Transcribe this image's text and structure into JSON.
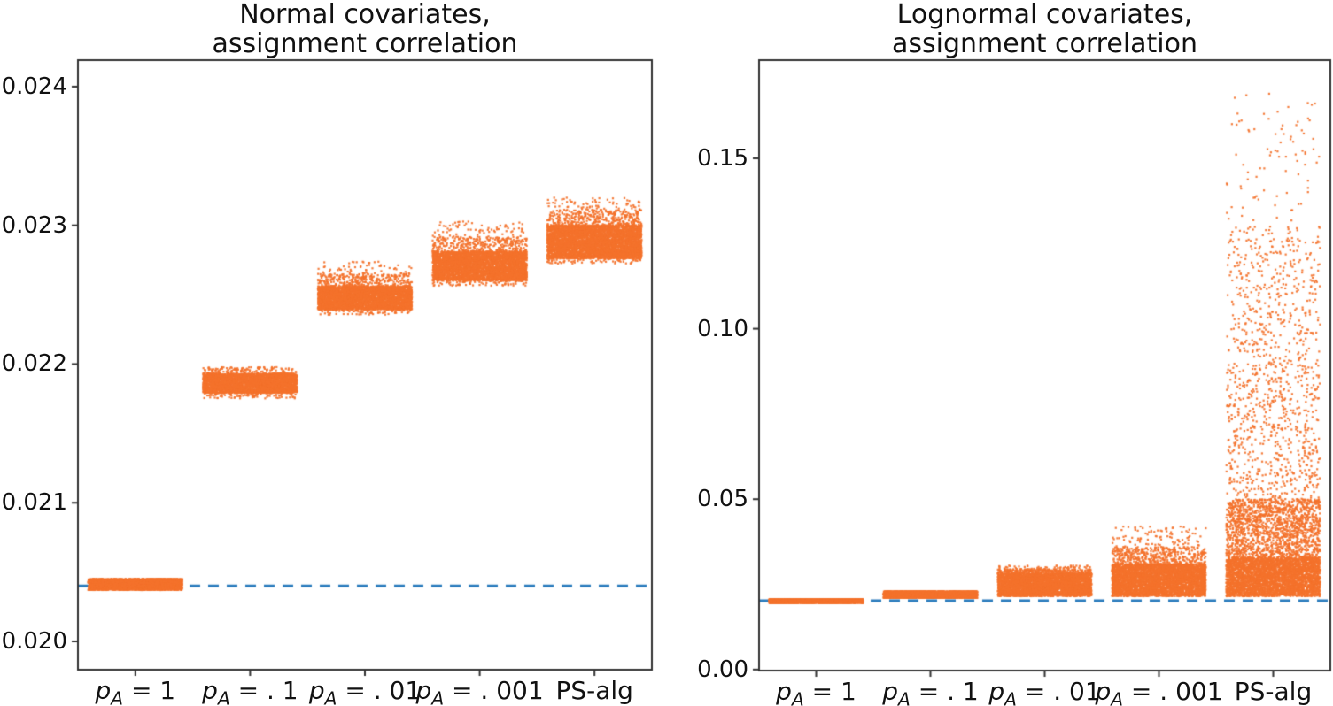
{
  "figure": {
    "background_color": "#ffffff",
    "point_color": "#f4722b",
    "baseline_color": "#2b7cbd",
    "axis_color": "#333333",
    "text_color": "#111111"
  },
  "chart_data": [
    {
      "type": "scatter",
      "title": "Normal covariates,\nassignment correlation",
      "xlabel": "",
      "ylabel": "",
      "grid": false,
      "legend": null,
      "categories": [
        "p_A = 1",
        "p_A = .1",
        "p_A = .01",
        "p_A = .001",
        "PS-alg"
      ],
      "xticklabels": [
        {
          "base": "p",
          "sub": "A",
          "rest": " = 1"
        },
        {
          "base": "p",
          "sub": "A",
          "rest": " = . 1"
        },
        {
          "base": "p",
          "sub": "A",
          "rest": " = . 01"
        },
        {
          "base": "p",
          "sub": "A",
          "rest": " = . 001"
        },
        {
          "base": "",
          "sub": "",
          "rest": "PS-alg"
        }
      ],
      "ylim": [
        0.019796,
        0.024191
      ],
      "yticks": [
        0.02,
        0.021,
        0.022,
        0.023,
        0.024
      ],
      "ytick_labels": [
        "0.020",
        "0.021",
        "0.022",
        "0.023",
        "0.024"
      ],
      "baseline_value": 0.0204,
      "baseline_style": "dashed",
      "clusters": [
        {
          "category": "p_A = 1",
          "center": 0.02041,
          "bands": [
            {
              "lo": 0.02037,
              "hi": 0.020452,
              "n": 2600
            }
          ]
        },
        {
          "category": "p_A = .1",
          "center": 0.02186,
          "bands": [
            {
              "lo": 0.02179,
              "hi": 0.021932,
              "n": 3200
            },
            {
              "lo": 0.021932,
              "hi": 0.021978,
              "n": 130
            },
            {
              "lo": 0.021752,
              "hi": 0.02179,
              "n": 80
            }
          ]
        },
        {
          "category": "p_A = .01",
          "center": 0.02248,
          "bands": [
            {
              "lo": 0.022392,
              "hi": 0.022562,
              "n": 3600
            },
            {
              "lo": 0.022562,
              "hi": 0.02265,
              "n": 300
            },
            {
              "lo": 0.02265,
              "hi": 0.02274,
              "n": 60
            },
            {
              "lo": 0.022355,
              "hi": 0.022392,
              "n": 70
            }
          ]
        },
        {
          "category": "p_A = .001",
          "center": 0.02271,
          "bands": [
            {
              "lo": 0.0226,
              "hi": 0.022812,
              "n": 3900
            },
            {
              "lo": 0.022812,
              "hi": 0.02292,
              "n": 320
            },
            {
              "lo": 0.02292,
              "hi": 0.02303,
              "n": 70
            },
            {
              "lo": 0.022565,
              "hi": 0.0226,
              "n": 70
            }
          ]
        },
        {
          "category": "PS-alg",
          "center": 0.02288,
          "bands": [
            {
              "lo": 0.02276,
              "hi": 0.023002,
              "n": 4300
            },
            {
              "lo": 0.023002,
              "hi": 0.02311,
              "n": 340
            },
            {
              "lo": 0.02311,
              "hi": 0.0232,
              "n": 80
            },
            {
              "lo": 0.022725,
              "hi": 0.02276,
              "n": 70
            }
          ]
        }
      ]
    },
    {
      "type": "scatter",
      "title": "Lognormal covariates,\nassignment correlation",
      "xlabel": "",
      "ylabel": "",
      "grid": false,
      "legend": null,
      "categories": [
        "p_A = 1",
        "p_A = .1",
        "p_A = .01",
        "p_A = .001",
        "PS-alg"
      ],
      "xticklabels": [
        {
          "base": "p",
          "sub": "A",
          "rest": " = 1"
        },
        {
          "base": "p",
          "sub": "A",
          "rest": " = . 1"
        },
        {
          "base": "p",
          "sub": "A",
          "rest": " = . 01"
        },
        {
          "base": "p",
          "sub": "A",
          "rest": " = . 001"
        },
        {
          "base": "",
          "sub": "",
          "rest": "PS-alg"
        }
      ],
      "ylim": [
        -0.0003,
        0.1788
      ],
      "yticks": [
        0.0,
        0.05,
        0.1,
        0.15
      ],
      "ytick_labels": [
        "0.00",
        "0.05",
        "0.10",
        "0.15"
      ],
      "baseline_value": 0.0202,
      "baseline_style": "dashed",
      "clusters": [
        {
          "category": "p_A = 1",
          "center": 0.0201,
          "bands": [
            {
              "lo": 0.0195,
              "hi": 0.0207,
              "n": 2600
            }
          ]
        },
        {
          "category": "p_A = .1",
          "center": 0.022,
          "bands": [
            {
              "lo": 0.021,
              "hi": 0.023,
              "n": 3200
            }
          ]
        },
        {
          "category": "p_A = .01",
          "center": 0.0248,
          "bands": [
            {
              "lo": 0.0215,
              "hi": 0.0282,
              "n": 3800
            },
            {
              "lo": 0.0282,
              "hi": 0.0295,
              "n": 260
            },
            {
              "lo": 0.0295,
              "hi": 0.0305,
              "n": 50
            }
          ]
        },
        {
          "category": "p_A = .001",
          "center": 0.0262,
          "bands": [
            {
              "lo": 0.0215,
              "hi": 0.031,
              "n": 4000
            },
            {
              "lo": 0.031,
              "hi": 0.036,
              "n": 420
            },
            {
              "lo": 0.036,
              "hi": 0.042,
              "n": 95
            }
          ]
        },
        {
          "category": "PS-alg",
          "center": 0.04,
          "bands": [
            {
              "lo": 0.0215,
              "hi": 0.033,
              "n": 3800
            },
            {
              "lo": 0.033,
              "hi": 0.05,
              "n": 1550
            },
            {
              "lo": 0.05,
              "hi": 0.09,
              "n": 640
            },
            {
              "lo": 0.09,
              "hi": 0.13,
              "n": 430
            },
            {
              "lo": 0.13,
              "hi": 0.169,
              "n": 85
            }
          ]
        }
      ]
    }
  ]
}
